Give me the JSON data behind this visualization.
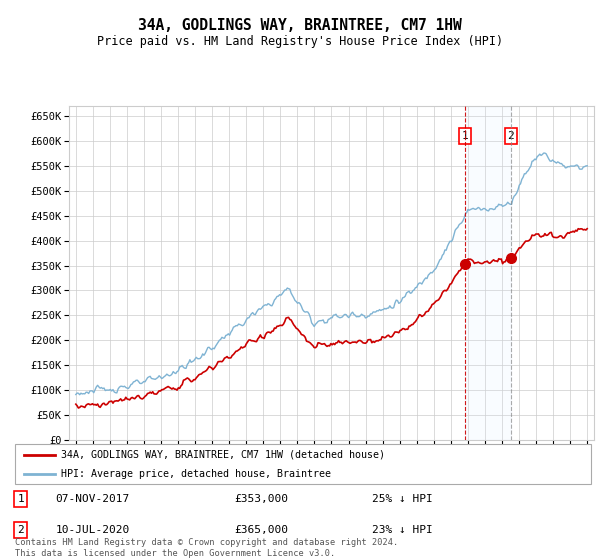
{
  "title": "34A, GODLINGS WAY, BRAINTREE, CM7 1HW",
  "subtitle": "Price paid vs. HM Land Registry's House Price Index (HPI)",
  "legend_line1": "34A, GODLINGS WAY, BRAINTREE, CM7 1HW (detached house)",
  "legend_line2": "HPI: Average price, detached house, Braintree",
  "event1_label": "1",
  "event1_date": "07-NOV-2017",
  "event1_price": "£353,000",
  "event1_hpi": "25% ↓ HPI",
  "event1_x": 2017.85,
  "event1_y": 353000,
  "event2_label": "2",
  "event2_date": "10-JUL-2020",
  "event2_price": "£365,000",
  "event2_hpi": "23% ↓ HPI",
  "event2_x": 2020.52,
  "event2_y": 365000,
  "footer": "Contains HM Land Registry data © Crown copyright and database right 2024.\nThis data is licensed under the Open Government Licence v3.0.",
  "ylim": [
    0,
    670000
  ],
  "yticks": [
    0,
    50000,
    100000,
    150000,
    200000,
    250000,
    300000,
    350000,
    400000,
    450000,
    500000,
    550000,
    600000,
    650000
  ],
  "xmin": 1994.6,
  "xmax": 2025.4,
  "background_color": "#ffffff",
  "grid_color": "#cccccc",
  "red_color": "#cc0000",
  "blue_color": "#7fb3d3",
  "shade_color": "#ddeeff"
}
